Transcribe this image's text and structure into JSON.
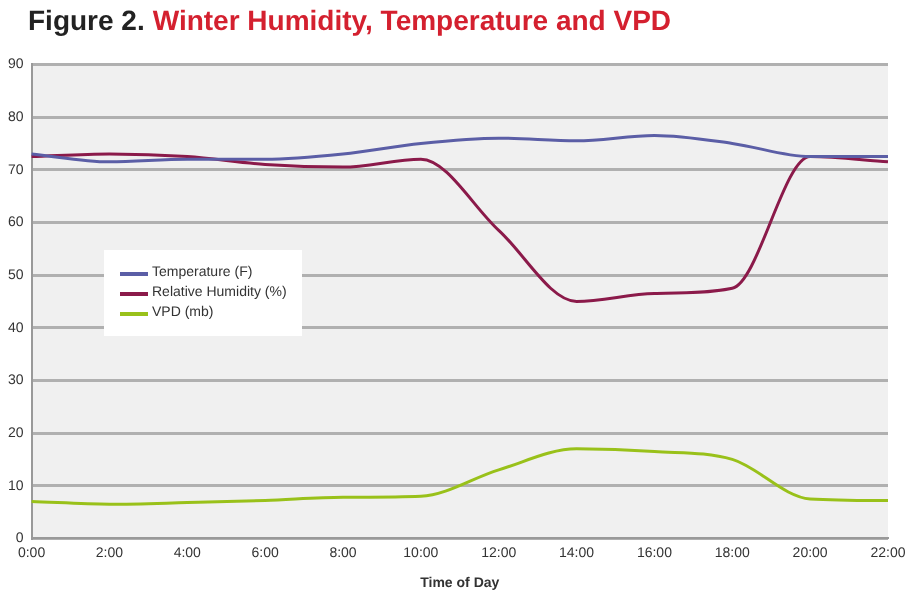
{
  "chart_data": {
    "type": "line",
    "title": "Winter Humidity, Temperature and VPD",
    "annotations": [
      "Figure 2."
    ],
    "xlabel": "Time of Day",
    "categories": [
      "0:00",
      "2:00",
      "4:00",
      "6:00",
      "8:00",
      "10:00",
      "12:00",
      "14:00",
      "16:00",
      "18:00",
      "20:00",
      "22:00"
    ],
    "series": [
      {
        "name": "Temperature (F)",
        "color": "#5b5ea6",
        "values": [
          73,
          71.5,
          72,
          72,
          73,
          75,
          76,
          75.5,
          76.5,
          75,
          72.5,
          72.5
        ]
      },
      {
        "name": "Relative Humidity (%)",
        "color": "#8b1a4a",
        "values": [
          72.5,
          73,
          72.5,
          71,
          70.5,
          72,
          58.5,
          45,
          46.5,
          47.5,
          72.5,
          71.5
        ]
      },
      {
        "name": "VPD (mb)",
        "color": "#99c11a",
        "values": [
          7,
          6.5,
          6.8,
          7.2,
          7.8,
          8,
          13,
          17,
          16.5,
          15,
          7.5,
          7.2
        ]
      }
    ],
    "ylim": [
      0,
      90
    ],
    "yticks": [
      0,
      10,
      20,
      30,
      40,
      50,
      60,
      70,
      80,
      90
    ],
    "grid": "y",
    "legend": "left",
    "marker": "none"
  }
}
